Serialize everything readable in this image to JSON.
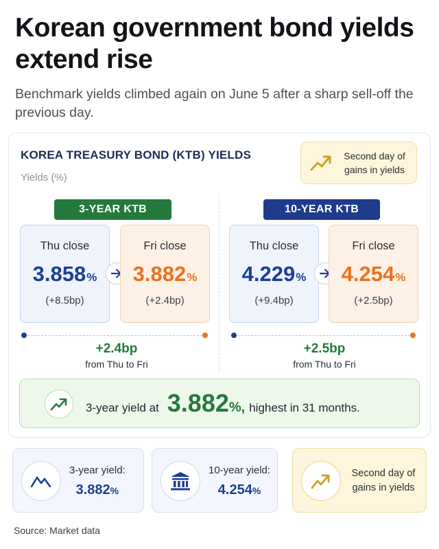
{
  "headline": "Korean government bond yields extend rise",
  "subhead": "Benchmark yields climbed again on June 5 after a sharp sell-off the previous day.",
  "section": {
    "title": "KOREA TREASURY BOND (KTB) YIELDS",
    "subtitle": "Yields (%)"
  },
  "note": {
    "text": "Second day of gains in yields",
    "icon": "trend-up-icon"
  },
  "ktb3": {
    "label": "3-YEAR KTB",
    "thu": {
      "label": "Thu close",
      "value": "3.858",
      "unit": "%",
      "change": "(+8.5bp)"
    },
    "fri": {
      "label": "Fri close",
      "value": "3.882",
      "unit": "%",
      "change": "(+2.4bp)"
    },
    "delta": "+2.4bp",
    "delta_note": "from Thu to Fri"
  },
  "ktb10": {
    "label": "10-YEAR KTB",
    "thu": {
      "label": "Thu close",
      "value": "4.229",
      "unit": "%",
      "change": "(+9.4bp)"
    },
    "fri": {
      "label": "Fri close",
      "value": "4.254",
      "unit": "%",
      "change": "(+2.5bp)"
    },
    "delta": "+2.5bp",
    "delta_note": "from Thu to Fri"
  },
  "highlight": {
    "prefix": "3-year yield at",
    "value": "3.882",
    "unit": "%,",
    "suffix": "highest in 31 months."
  },
  "bottom_cards": [
    {
      "label": "3-year yield:",
      "value": "3.882",
      "unit": "%",
      "icon": "trend-down-up-icon"
    },
    {
      "label": "10-year yield:",
      "value": "4.254",
      "unit": "%",
      "icon": "bank-icon"
    },
    {
      "label": "Second day of gains in yields",
      "icon": "trend-up-icon"
    }
  ],
  "source": "Source: Market data",
  "colors": {
    "navy": "#1c3f94",
    "green": "#247a3c",
    "orange": "#e8731d",
    "gold": "#c9a227"
  }
}
